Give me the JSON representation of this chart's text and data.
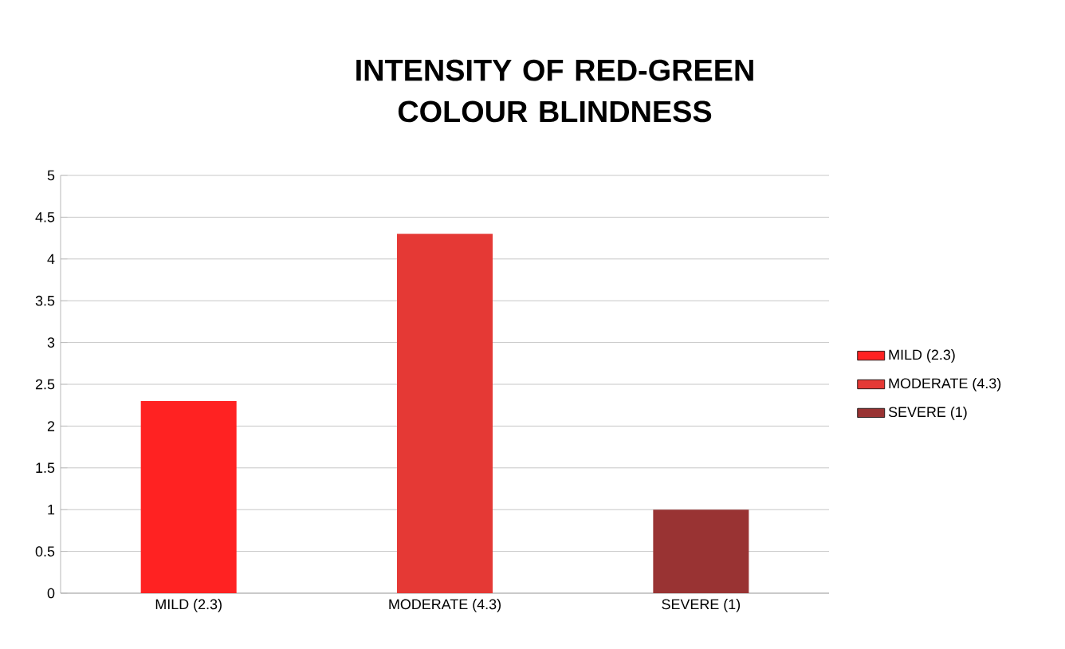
{
  "chart_data": {
    "type": "bar",
    "title": "INTENSITY OF RED-GREEN COLOUR BLINDNESS",
    "categories": [
      "MILD (2.3)",
      "MODERATE (4.3)",
      "SEVERE (1)"
    ],
    "series": [
      {
        "name": "MILD (2.3)",
        "color": "#ff2222",
        "values": [
          2.3,
          null,
          null
        ]
      },
      {
        "name": "MODERATE (4.3)",
        "color": "#e53935",
        "values": [
          null,
          4.3,
          null
        ]
      },
      {
        "name": "SEVERE (1)",
        "color": "#993333",
        "values": [
          null,
          null,
          1
        ]
      }
    ],
    "ylim": [
      0,
      5
    ],
    "yticks": [
      0,
      0.5,
      1,
      1.5,
      2,
      2.5,
      3,
      3.5,
      4,
      4.5,
      5
    ],
    "grid": "y",
    "legend": "right"
  }
}
